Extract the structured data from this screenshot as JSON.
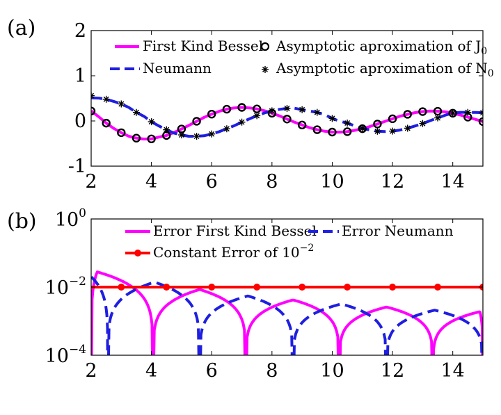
{
  "chart_data": [
    {
      "panel_label": "(a)",
      "type": "line",
      "xlim": [
        2,
        15
      ],
      "ylim": [
        -1,
        2
      ],
      "xticks": [
        2,
        4,
        6,
        8,
        10,
        12,
        14
      ],
      "yticks": [
        -1,
        0,
        1,
        2
      ],
      "x_tick_labels": [
        "2",
        "4",
        "6",
        "8",
        "10",
        "12",
        "14"
      ],
      "y_tick_labels": [
        "-1",
        "0",
        "1",
        "2"
      ],
      "series": [
        {
          "name": "First Kind Bessel",
          "style": "solid",
          "color": "#ff00ff",
          "x": [
            2.0,
            2.25,
            2.5,
            2.75,
            3.0,
            3.25,
            3.5,
            3.75,
            4.0,
            4.25,
            4.5,
            4.75,
            5.0,
            5.25,
            5.5,
            5.75,
            6.0,
            6.25,
            6.5,
            6.75,
            7.0,
            7.25,
            7.5,
            7.75,
            8.0,
            8.25,
            8.5,
            8.75,
            9.0,
            9.25,
            9.5,
            9.75,
            10.0,
            10.25,
            10.5,
            10.75,
            11.0,
            11.25,
            11.5,
            11.75,
            12.0,
            12.25,
            12.5,
            12.75,
            13.0,
            13.25,
            13.5,
            13.75,
            14.0,
            14.25,
            14.5,
            14.75,
            15.0
          ],
          "values": [
            0.224,
            0.094,
            -0.048,
            -0.164,
            -0.26,
            -0.338,
            -0.38,
            -0.4,
            -0.397,
            -0.357,
            -0.321,
            -0.256,
            -0.178,
            -0.095,
            -0.007,
            0.08,
            0.151,
            0.214,
            0.26,
            0.29,
            0.3,
            0.29,
            0.266,
            0.226,
            0.172,
            0.113,
            0.042,
            -0.028,
            -0.09,
            -0.149,
            -0.194,
            -0.228,
            -0.246,
            -0.248,
            -0.237,
            -0.208,
            -0.171,
            -0.123,
            -0.068,
            -0.01,
            0.048,
            0.104,
            0.147,
            0.185,
            0.207,
            0.218,
            0.215,
            0.201,
            0.171,
            0.133,
            0.085,
            0.035,
            -0.014
          ]
        },
        {
          "name": "Neumann",
          "style": "dashed",
          "color": "#1f1fe0",
          "x": [
            2.0,
            2.25,
            2.5,
            2.75,
            3.0,
            3.25,
            3.5,
            3.75,
            4.0,
            4.25,
            4.5,
            4.75,
            5.0,
            5.25,
            5.5,
            5.75,
            6.0,
            6.25,
            6.5,
            6.75,
            7.0,
            7.25,
            7.5,
            7.75,
            8.0,
            8.25,
            8.5,
            8.75,
            9.0,
            9.25,
            9.5,
            9.75,
            10.0,
            10.25,
            10.5,
            10.75,
            11.0,
            11.25,
            11.5,
            11.75,
            12.0,
            12.25,
            12.5,
            12.75,
            13.0,
            13.25,
            13.5,
            13.75,
            14.0,
            14.25,
            14.5,
            14.75,
            15.0
          ],
          "values": [
            0.51,
            0.506,
            0.48,
            0.433,
            0.377,
            0.298,
            0.189,
            0.103,
            -0.017,
            -0.111,
            -0.195,
            -0.267,
            -0.309,
            -0.34,
            -0.339,
            -0.328,
            -0.288,
            -0.237,
            -0.173,
            -0.105,
            -0.026,
            0.046,
            0.117,
            0.177,
            0.224,
            0.257,
            0.278,
            0.281,
            0.25,
            0.222,
            0.19,
            0.14,
            0.056,
            -0.005,
            -0.047,
            -0.107,
            -0.164,
            -0.2,
            -0.228,
            -0.235,
            -0.225,
            -0.201,
            -0.161,
            -0.11,
            -0.057,
            0.006,
            0.068,
            0.127,
            0.176,
            0.191,
            0.19,
            0.187,
            0.183
          ]
        },
        {
          "name": "Asymptotic aproximation of J0",
          "style": "markers",
          "marker": "circle",
          "color": "#000000",
          "x": [
            2.0,
            2.5,
            3.0,
            3.5,
            4.0,
            4.5,
            5.0,
            5.5,
            6.0,
            6.5,
            7.0,
            7.5,
            8.0,
            8.5,
            9.0,
            9.5,
            10.0,
            10.5,
            11.0,
            11.5,
            12.0,
            12.5,
            13.0,
            13.5,
            14.0,
            14.5,
            15.0
          ],
          "values": [
            0.22,
            -0.048,
            -0.26,
            -0.38,
            -0.397,
            -0.321,
            -0.178,
            -0.007,
            0.151,
            0.26,
            0.3,
            0.266,
            0.172,
            0.042,
            -0.09,
            -0.194,
            -0.246,
            -0.237,
            -0.171,
            -0.068,
            0.048,
            0.147,
            0.207,
            0.215,
            0.171,
            0.085,
            -0.014
          ]
        },
        {
          "name": "Asymptotic aproximation of N0",
          "style": "markers",
          "marker": "asterisk",
          "color": "#000000",
          "x": [
            2.0,
            2.5,
            3.0,
            3.5,
            4.0,
            4.5,
            5.0,
            5.5,
            6.0,
            6.5,
            7.0,
            7.5,
            8.0,
            8.5,
            9.0,
            9.5,
            10.0,
            10.5,
            11.0,
            11.5,
            12.0,
            12.5,
            13.0,
            13.5,
            14.0,
            14.5,
            15.0
          ],
          "values": [
            0.56,
            0.48,
            0.377,
            0.189,
            -0.017,
            -0.195,
            -0.309,
            -0.339,
            -0.288,
            -0.173,
            -0.026,
            0.117,
            0.224,
            0.278,
            0.25,
            0.19,
            0.056,
            -0.047,
            -0.164,
            -0.228,
            -0.225,
            -0.161,
            -0.057,
            0.068,
            0.176,
            0.19,
            0.183
          ]
        }
      ],
      "legend": {
        "position": "top",
        "entries": [
          {
            "label": "First Kind Bessel"
          },
          {
            "label": "Asymptotic aproximation of J",
            "subscript": "0"
          },
          {
            "label": "Neumann"
          },
          {
            "label": "Asymptotic aproximation of N",
            "subscript": "0"
          }
        ]
      }
    },
    {
      "panel_label": "(b)",
      "type": "line",
      "yscale": "log",
      "xlim": [
        2,
        15
      ],
      "ylim": [
        0.0001,
        1
      ],
      "xticks": [
        2,
        4,
        6,
        8,
        10,
        12,
        14
      ],
      "x_tick_labels": [
        "2",
        "4",
        "6",
        "8",
        "10",
        "12",
        "14"
      ],
      "y_tick_labels": [
        {
          "value": 0.0001,
          "base": "10",
          "exp": "−4"
        },
        {
          "value": 0.01,
          "base": "10",
          "exp": "−2"
        },
        {
          "value": 1,
          "base": "10",
          "exp": "0"
        }
      ],
      "series": [
        {
          "name": "Error First Kind Bessel",
          "style": "solid",
          "color": "#ff00ff",
          "arches": [
            {
              "from": 2.0,
              "to": 4.05,
              "peak_x": 2.2,
              "peak": 0.028
            },
            {
              "from": 4.05,
              "to": 7.13,
              "peak_x": 5.6,
              "peak": 0.0085
            },
            {
              "from": 7.13,
              "to": 10.23,
              "peak_x": 8.7,
              "peak": 0.0042
            },
            {
              "from": 10.23,
              "to": 13.34,
              "peak_x": 11.8,
              "peak": 0.0026
            },
            {
              "from": 13.34,
              "to": 15.0,
              "peak_x": 14.9,
              "peak": 0.0019
            }
          ]
        },
        {
          "name": "Error Neumann",
          "style": "dashed",
          "color": "#1f1fe0",
          "arches": [
            {
              "from": 2.0,
              "to": 2.55,
              "peak_x": 2.0,
              "peak": 0.02
            },
            {
              "from": 2.55,
              "to": 5.6,
              "peak_x": 4.1,
              "peak": 0.014
            },
            {
              "from": 5.6,
              "to": 8.7,
              "peak_x": 7.2,
              "peak": 0.0055
            },
            {
              "from": 8.7,
              "to": 11.8,
              "peak_x": 10.3,
              "peak": 0.0032
            },
            {
              "from": 11.8,
              "to": 15.0,
              "peak_x": 13.4,
              "peak": 0.0021
            }
          ]
        },
        {
          "name": "Constant Error of 10^-2",
          "style": "solid-markers",
          "color": "#ff0000",
          "x": [
            3.0,
            4.5,
            6.0,
            7.5,
            9.0,
            10.5,
            12.0,
            13.5,
            15.0
          ],
          "values": [
            0.01,
            0.01,
            0.01,
            0.01,
            0.01,
            0.01,
            0.01,
            0.01,
            0.01
          ]
        }
      ],
      "legend": {
        "position": "top",
        "entries": [
          {
            "label": "Error First Kind Bessel"
          },
          {
            "label": "Error Neumann"
          },
          {
            "label": "Constant Error of 10",
            "superscript": "−2"
          }
        ]
      }
    }
  ]
}
